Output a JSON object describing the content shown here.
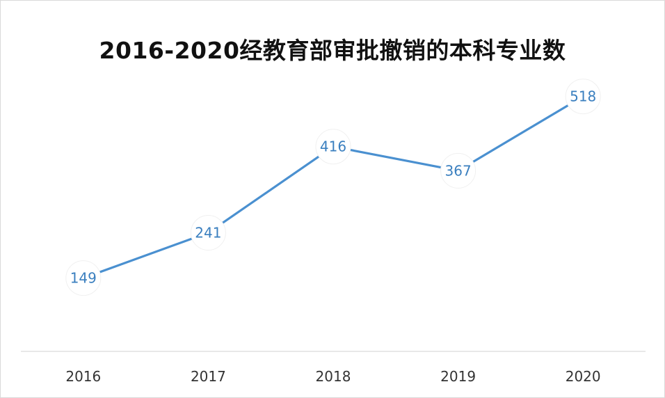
{
  "chart_data": {
    "type": "line",
    "title": "2016-2020经教育部审批撤销的本科专业数",
    "categories": [
      "2016",
      "2017",
      "2018",
      "2019",
      "2020"
    ],
    "series": [
      {
        "values": [
          149,
          241,
          416,
          367,
          518
        ],
        "labels": [
          "149",
          "241",
          "416",
          "367",
          "518"
        ]
      }
    ],
    "xlabel": "",
    "ylabel": "",
    "ylim": [
      0,
      560
    ],
    "grid": false,
    "legend": "none",
    "line_color": "#4a90d0",
    "label_color": "#3a7fbf",
    "tick_color": "#333333",
    "axis_color": "#d9d9d9"
  }
}
